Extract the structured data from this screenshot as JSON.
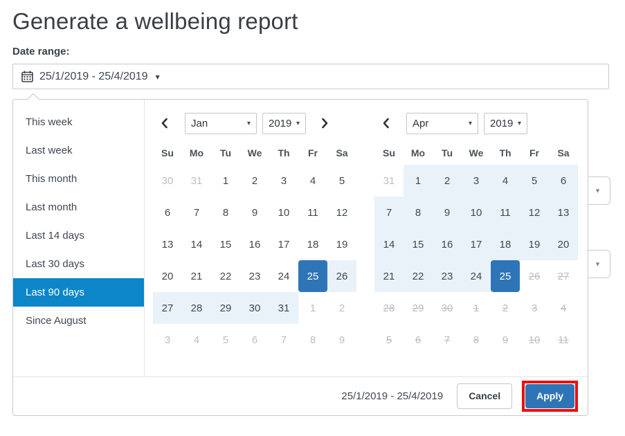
{
  "page": {
    "title": "Generate a wellbeing report",
    "date_range_label": "Date range:",
    "date_range_value": "25/1/2019 - 25/4/2019"
  },
  "icons": {
    "caret_down": "▾",
    "calendar": "calendar-grid-glyph",
    "chevron_left": "❮",
    "chevron_right": "❯"
  },
  "presets": {
    "items": [
      "This week",
      "Last week",
      "This month",
      "Last month",
      "Last 14 days",
      "Last 30 days",
      "Last 90 days",
      "Since August"
    ],
    "selected": "Last 90 days"
  },
  "calendars": [
    {
      "month": "Jan",
      "year": "2019",
      "prev_enabled": true,
      "next_enabled": true,
      "weekdays": [
        "Su",
        "Mo",
        "Tu",
        "We",
        "Th",
        "Fr",
        "Sa"
      ],
      "weeks": [
        [
          "30|m",
          "31|m",
          "1|n",
          "2|n",
          "3|n",
          "4|n",
          "5|n"
        ],
        [
          "6|n",
          "7|n",
          "8|n",
          "9|n",
          "10|n",
          "11|n",
          "12|n"
        ],
        [
          "13|n",
          "14|n",
          "15|n",
          "16|n",
          "17|n",
          "18|n",
          "19|n"
        ],
        [
          "20|n",
          "21|n",
          "22|n",
          "23|n",
          "24|n",
          "25|s",
          "26|r"
        ],
        [
          "27|r",
          "28|r",
          "29|r",
          "30|r",
          "31|r",
          "1|m",
          "2|m"
        ],
        [
          "3|m",
          "4|m",
          "5|m",
          "6|m",
          "7|m",
          "8|m",
          "9|m"
        ]
      ]
    },
    {
      "month": "Apr",
      "year": "2019",
      "prev_enabled": true,
      "next_enabled": false,
      "weekdays": [
        "Su",
        "Mo",
        "Tu",
        "We",
        "Th",
        "Fr",
        "Sa"
      ],
      "weeks": [
        [
          "31|m",
          "1|r",
          "2|r",
          "3|r",
          "4|r",
          "5|r",
          "6|r"
        ],
        [
          "7|r",
          "8|r",
          "9|r",
          "10|r",
          "11|r",
          "12|r",
          "13|r"
        ],
        [
          "14|r",
          "15|r",
          "16|r",
          "17|r",
          "18|r",
          "19|r",
          "20|r"
        ],
        [
          "21|r",
          "22|r",
          "23|r",
          "24|r",
          "25|s",
          "26|x",
          "27|x"
        ],
        [
          "28|x",
          "29|x",
          "30|x",
          "1|x",
          "2|x",
          "3|x",
          "4|x"
        ],
        [
          "5|x",
          "6|x",
          "7|x",
          "8|x",
          "9|x",
          "10|x",
          "11|x"
        ]
      ]
    }
  ],
  "footer": {
    "range_text": "25/1/2019 - 25/4/2019",
    "cancel_label": "Cancel",
    "apply_label": "Apply"
  },
  "colors": {
    "preset_selected_bg": "#0d86c9",
    "date_selected_bg": "#2e75b8",
    "in_range_bg": "#e9f2f9",
    "apply_button_bg": "#2e75b8",
    "highlight_outline": "#ee0d0d",
    "border": "#c9c9c9",
    "text": "#3f4850",
    "muted_text": "#b9bfc5"
  }
}
